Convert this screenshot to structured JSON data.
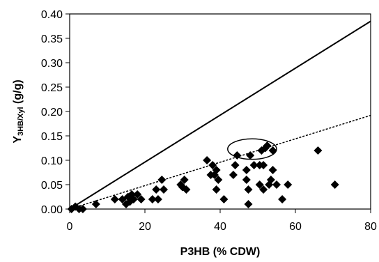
{
  "chart_data": {
    "type": "scatter",
    "title": "",
    "xlabel": "P3HB (% CDW)",
    "ylabel_main": "Y",
    "ylabel_sub": "3HB/Xyl",
    "ylabel_unit": " (g/g)",
    "xlim": [
      0,
      80
    ],
    "ylim": [
      0,
      0.4
    ],
    "x_ticks": [
      "0",
      "20",
      "40",
      "60",
      "80"
    ],
    "y_ticks": [
      "0.00",
      "0.05",
      "0.10",
      "0.15",
      "0.20",
      "0.25",
      "0.30",
      "0.35",
      "0.40"
    ],
    "grid": false,
    "legend": "none",
    "marker": "diamond",
    "marker_color": "#000000",
    "points": [
      {
        "x": 0.5,
        "y": 0.0
      },
      {
        "x": 1.5,
        "y": 0.005
      },
      {
        "x": 2.5,
        "y": 0.0
      },
      {
        "x": 3.5,
        "y": 0.0
      },
      {
        "x": 7,
        "y": 0.01
      },
      {
        "x": 12,
        "y": 0.02
      },
      {
        "x": 14,
        "y": 0.02
      },
      {
        "x": 15,
        "y": 0.01
      },
      {
        "x": 15.5,
        "y": 0.025
      },
      {
        "x": 16,
        "y": 0.015
      },
      {
        "x": 16.5,
        "y": 0.03
      },
      {
        "x": 17,
        "y": 0.02
      },
      {
        "x": 18,
        "y": 0.03
      },
      {
        "x": 19,
        "y": 0.02
      },
      {
        "x": 22,
        "y": 0.02
      },
      {
        "x": 23,
        "y": 0.04
      },
      {
        "x": 23.5,
        "y": 0.02
      },
      {
        "x": 24.5,
        "y": 0.06
      },
      {
        "x": 25,
        "y": 0.04
      },
      {
        "x": 29.5,
        "y": 0.05
      },
      {
        "x": 30,
        "y": 0.045
      },
      {
        "x": 30.5,
        "y": 0.06
      },
      {
        "x": 31,
        "y": 0.04
      },
      {
        "x": 36.5,
        "y": 0.1
      },
      {
        "x": 37.5,
        "y": 0.07
      },
      {
        "x": 38,
        "y": 0.09
      },
      {
        "x": 38.5,
        "y": 0.07
      },
      {
        "x": 39,
        "y": 0.08
      },
      {
        "x": 39,
        "y": 0.04
      },
      {
        "x": 39.5,
        "y": 0.06
      },
      {
        "x": 41,
        "y": 0.02
      },
      {
        "x": 43.5,
        "y": 0.07
      },
      {
        "x": 44,
        "y": 0.09
      },
      {
        "x": 44.5,
        "y": 0.11
      },
      {
        "x": 47,
        "y": 0.08
      },
      {
        "x": 47,
        "y": 0.06
      },
      {
        "x": 47.5,
        "y": 0.04
      },
      {
        "x": 47.5,
        "y": 0.01
      },
      {
        "x": 48,
        "y": 0.11
      },
      {
        "x": 49,
        "y": 0.09
      },
      {
        "x": 50.5,
        "y": 0.09
      },
      {
        "x": 50.5,
        "y": 0.05
      },
      {
        "x": 51,
        "y": 0.12
      },
      {
        "x": 51.5,
        "y": 0.09
      },
      {
        "x": 51.5,
        "y": 0.04
      },
      {
        "x": 52,
        "y": 0.125
      },
      {
        "x": 52.5,
        "y": 0.13
      },
      {
        "x": 53,
        "y": 0.05
      },
      {
        "x": 53.5,
        "y": 0.06
      },
      {
        "x": 54,
        "y": 0.12
      },
      {
        "x": 54,
        "y": 0.08
      },
      {
        "x": 55,
        "y": 0.05
      },
      {
        "x": 56.5,
        "y": 0.02
      },
      {
        "x": 58,
        "y": 0.05
      },
      {
        "x": 66,
        "y": 0.12
      },
      {
        "x": 70.5,
        "y": 0.05
      }
    ],
    "reference_lines": [
      {
        "style": "solid",
        "x": [
          0,
          80
        ],
        "y": [
          0,
          0.385
        ]
      },
      {
        "style": "dashed",
        "x": [
          0,
          80
        ],
        "y": [
          0,
          0.192
        ]
      }
    ],
    "annotations": [
      {
        "type": "ellipse",
        "cx": 48.5,
        "cy": 0.123,
        "rx": 6.5,
        "ry": 0.021
      }
    ]
  }
}
